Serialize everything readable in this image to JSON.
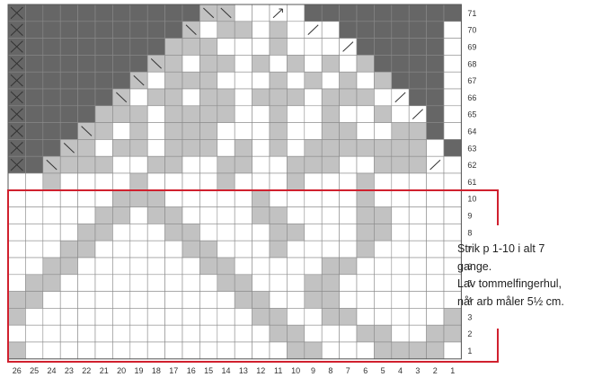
{
  "chart_data": {
    "type": "knitting-chart",
    "columns": 26,
    "column_labels": [
      "26",
      "25",
      "24",
      "23",
      "22",
      "21",
      "20",
      "19",
      "18",
      "17",
      "16",
      "15",
      "14",
      "13",
      "12",
      "11",
      "10",
      "9",
      "8",
      "7",
      "6",
      "5",
      "4",
      "3",
      "2",
      "1"
    ],
    "row_labels": [
      "71",
      "70",
      "69",
      "68",
      "67",
      "66",
      "65",
      "64",
      "63",
      "62",
      "61",
      "10",
      "9",
      "8",
      "7",
      "6",
      "5",
      "4",
      "3",
      "2",
      "1"
    ],
    "legend": "X = no stitch, / = decrease, dark = no stitch, grey = contrast colour, white = main colour",
    "grid": [
      "XDDDDDDDDDDBBWWUWDDDDDDDDD",
      "XDDDDDDDDDBWGGWGWFWDDDDDDW",
      "XDDDDDDDDGGGWWWGWWWFDDDDDW",
      "XDDDDDDDBGWGGWGWGWGWGDDDDW",
      "XDDDDDDBWGGGWWWGWGWGWGDDDW",
      "XDDDDDBWGGWGGWGGGWGGGWFDDW",
      "XDDDDGGGWGGGGWWGWWGWWGWFDW",
      "XDDDBGWGWGGGWWWGWWGGWWGGDW",
      "XDDBGWGGWGGGWGWGWGGGGGGGWD",
      "XDBGGGWWGGWWGGWWGGGWWGGGFW",
      "WWGWWWWGWWWWGWWWGWWWGWWWWW",
      "WWWWWWGGGWWWWWGWWWWWGWWWWW",
      "WWWWWGGWGGWWWWGGWWWWGGWWWW",
      "WWWWGGWWWGGWWWWGGWWWGGWWWW",
      "WWWGGWWWWWGGWWWGWWWWGWWWWW",
      "WWGGWWWWWWWGGWWWWWGGWWWWWW",
      "WGGWWWWWWWWWGGWWWGGWWWWWWW",
      "GGWWWWWWWWWWWGGWWGGWWWWWWW",
      "GWWWWWWWWWWWWWGGWWGGWWWWWG",
      "WWWWWWWWWWWWWWWGGWWWGGWWGG",
      "GWWWWWWWWWWWWWWWGGWWWGGGGW"
    ],
    "repeat_block_rows": "1-10"
  },
  "note": {
    "line1": "Strik p 1-10 i alt 7",
    "line2": "gange.",
    "line3": "Lav tommelfingerhul,",
    "line4": "når arb måler 5½ cm."
  },
  "colors": {
    "dark": "#666666",
    "contrast": "#c2c2c2",
    "main": "#ffffff",
    "repeat_outline": "#d0202e"
  }
}
